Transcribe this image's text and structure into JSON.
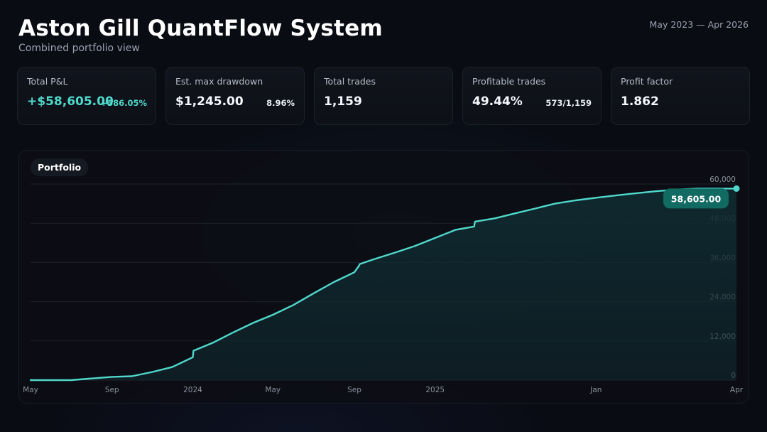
{
  "header": {
    "title": "Aston Gill QuantFlow System",
    "subtitle": "Combined portfolio view",
    "date_range": "May 2023 — Apr 2026"
  },
  "cards": [
    {
      "label": "Total P&L",
      "value": "+$58,605.00",
      "side": "+586.05%"
    },
    {
      "label": "Est. max drawdown",
      "value": "$1,245.00",
      "side": "8.96%"
    },
    {
      "label": "Total trades",
      "value": "1,159",
      "side": ""
    },
    {
      "label": "Profitable trades",
      "value": "49.44%",
      "side": "573/1,159"
    },
    {
      "label": "Profit factor",
      "value": "1.862",
      "side": ""
    }
  ],
  "chart_tab": "Portfolio",
  "colors": {
    "accent": "#4fd8cb",
    "area_fill": "#0f2a30",
    "last_badge": "#126b63",
    "grid": "#1d222c",
    "axis_text": "#8a909c"
  },
  "chart_data": {
    "type": "area",
    "series": [
      {
        "x": [
          "2023-05-01",
          "2023-06-01",
          "2023-07-01",
          "2023-08-01",
          "2023-09-01",
          "2023-10-01",
          "2023-11-01",
          "2023-12-01",
          "2024-01-01",
          "2024-01-02",
          "2024-02-01",
          "2024-03-01",
          "2024-04-01",
          "2024-05-01",
          "2024-06-01",
          "2024-07-01",
          "2024-08-01",
          "2024-09-01",
          "2024-09-08",
          "2024-09-09",
          "2024-10-01",
          "2024-11-01",
          "2024-12-01",
          "2025-01-01",
          "2025-02-01",
          "2025-03-01",
          "2025-03-02",
          "2025-04-01",
          "2025-05-01",
          "2025-06-01",
          "2025-07-01",
          "2025-08-01",
          "2025-09-01",
          "2025-10-01",
          "2025-11-01",
          "2025-12-01",
          "2026-01-01",
          "2026-02-01",
          "2026-03-01",
          "2026-04-01"
        ],
        "y": [
          0,
          0,
          0,
          500,
          1000,
          1200,
          2500,
          4000,
          7000,
          9000,
          11500,
          14500,
          17500,
          20000,
          23000,
          26500,
          30000,
          33000,
          35000,
          35500,
          37000,
          39000,
          41000,
          43500,
          46000,
          47000,
          48500,
          49500,
          51000,
          52500,
          54000,
          55000,
          55800,
          56500,
          57200,
          57800,
          58300,
          58605,
          58605,
          58605
        ]
      }
    ],
    "last_value_label": "58,605.00",
    "y_ticks": [
      "0",
      "12,000",
      "24,000",
      "36,000",
      "48,000",
      "60,000"
    ],
    "x_ticks": [
      "May",
      "Sep",
      "2024",
      "May",
      "Sep",
      "2025",
      "Jan",
      "Apr"
    ],
    "ylim": [
      0,
      60000
    ],
    "xlim": [
      "2023-05-01",
      "2026-04-01"
    ],
    "grid": true,
    "y_axis_side": "right"
  }
}
